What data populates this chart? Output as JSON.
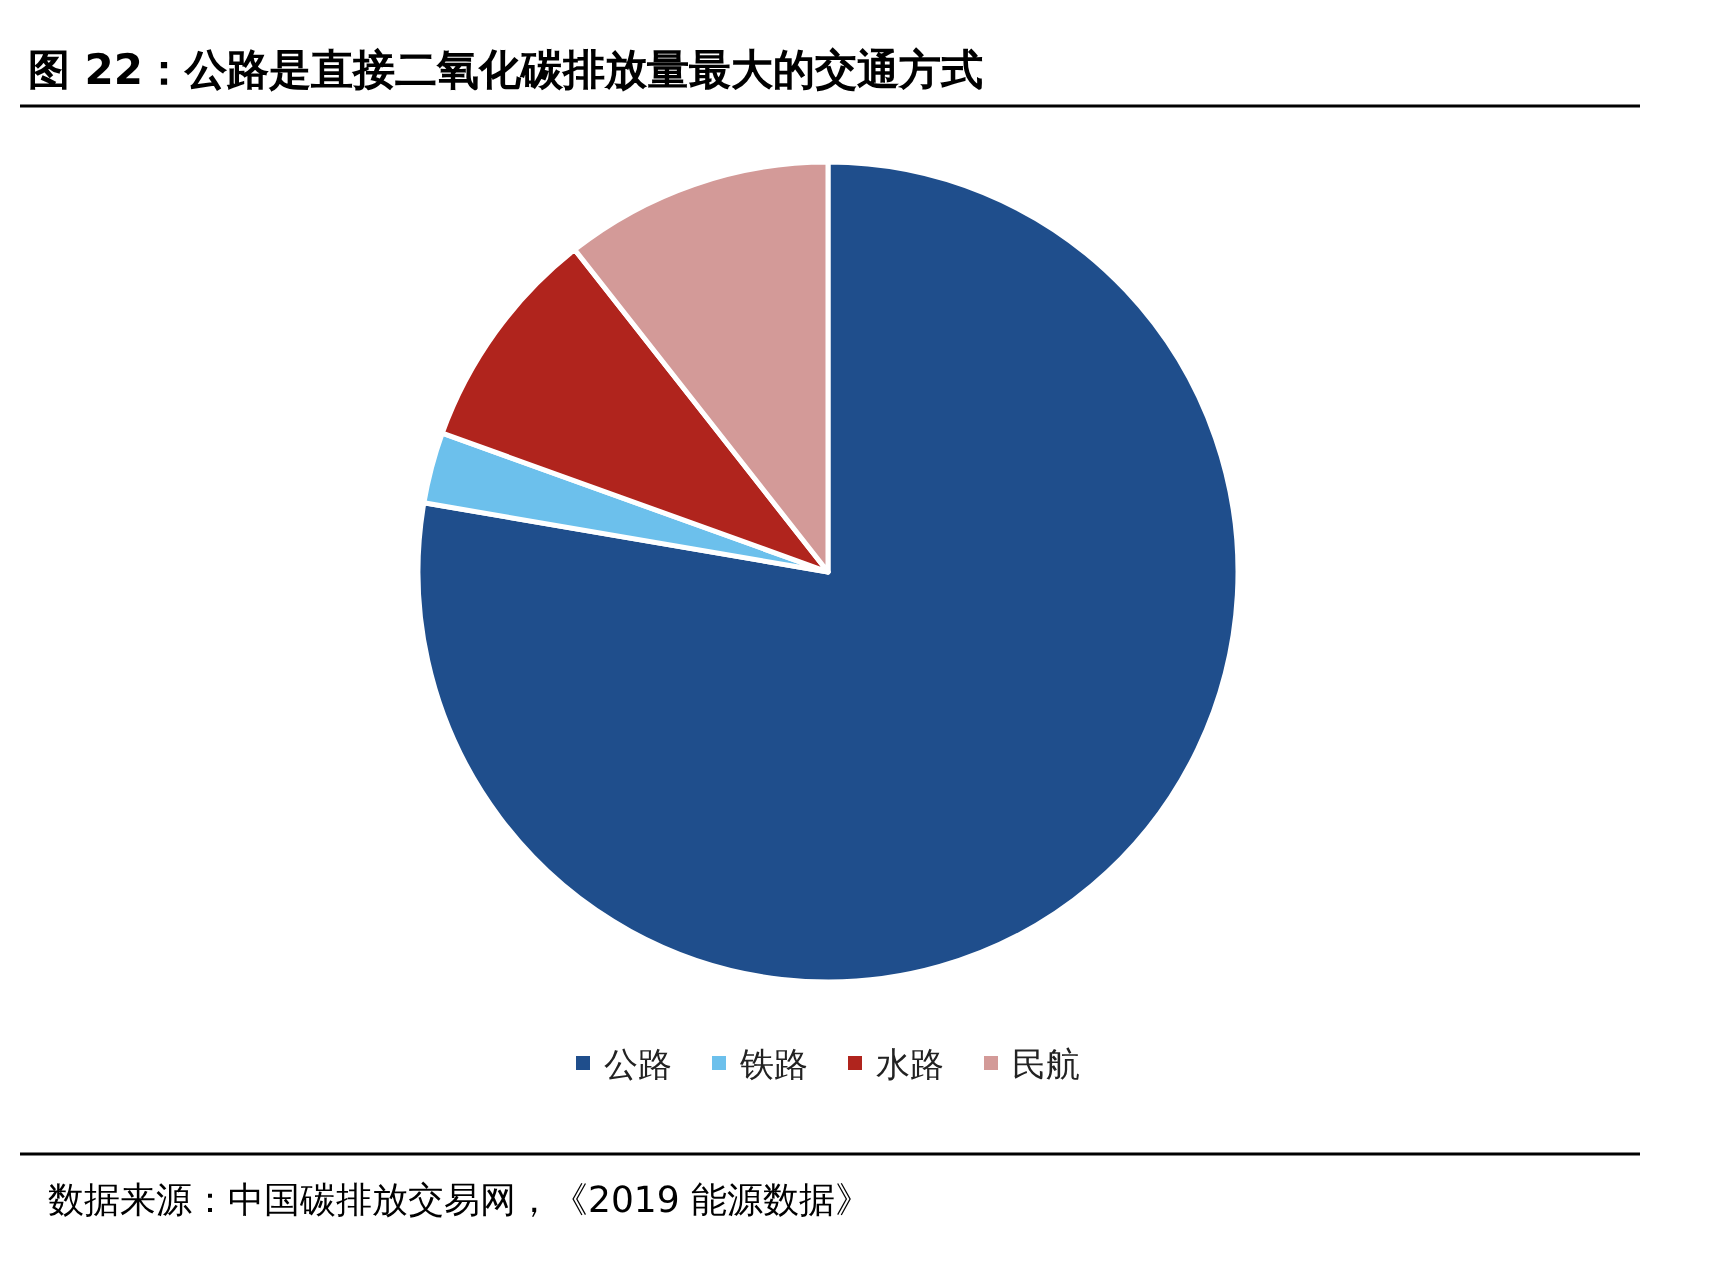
{
  "chart_data": {
    "type": "pie",
    "title": "图 22：公路是直接二氧化碳排放量最大的交通方式",
    "categories": [
      "公路",
      "铁路",
      "水路",
      "民航"
    ],
    "values": [
      77.7,
      2.8,
      8.9,
      10.6
    ],
    "colors": [
      "#1f4e8c",
      "#6cc0ec",
      "#b0241d",
      "#d39a98"
    ],
    "legend": "bottom",
    "annotations": [
      "数据来源：中国碳排放交易网，《2019 能源数据》"
    ]
  }
}
